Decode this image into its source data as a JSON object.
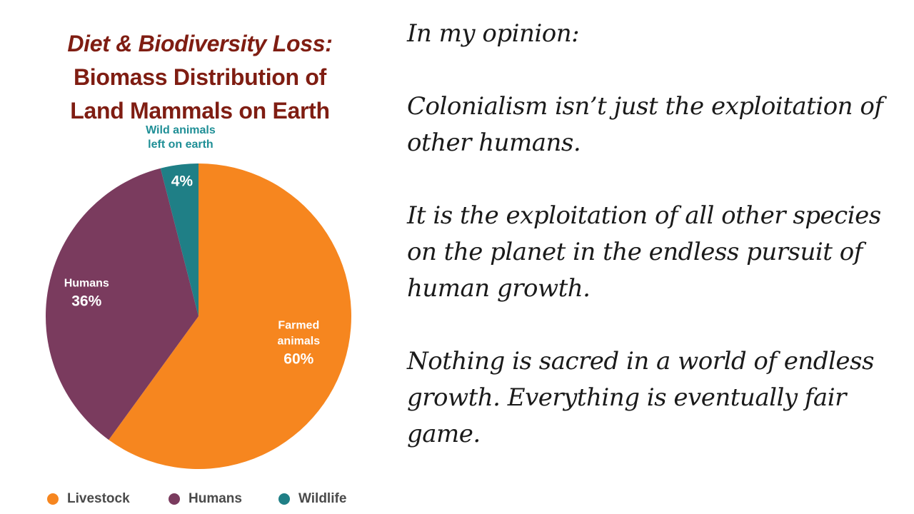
{
  "chart_data": {
    "type": "pie",
    "title": [
      "Diet & Biodiversity Loss:",
      "Biomass Distribution of",
      "Land Mammals on Earth"
    ],
    "slices": [
      {
        "label": "Farmed animals",
        "value": 60,
        "value_label": "60%",
        "color": "#f6861f",
        "label_color": "#ffffff"
      },
      {
        "label": "Humans",
        "value": 36,
        "value_label": "36%",
        "color": "#7a3b5e",
        "label_color": "#ffffff"
      },
      {
        "label": "Wild animals left on earth",
        "value": 4,
        "value_label": "4%",
        "color": "#1f7f86",
        "label_color": "#1f8f96"
      }
    ],
    "legend": [
      {
        "label": "Livestock",
        "color": "#f6861f"
      },
      {
        "label": "Humans",
        "color": "#7a3b5e"
      },
      {
        "label": "Wildlife",
        "color": "#1f7f86"
      }
    ],
    "legend_placement": "bottom",
    "start": "top",
    "direction": "clockwise"
  },
  "opinion": {
    "heading": "In my opinion:",
    "paragraphs": [
      "Colonialism isn’t just the exploitation of other humans.",
      "It is the exploitation of all other species on the planet in the endless pursuit of human growth.",
      "Nothing is sacred in a world of endless growth.  Everything is eventually fair game."
    ]
  }
}
